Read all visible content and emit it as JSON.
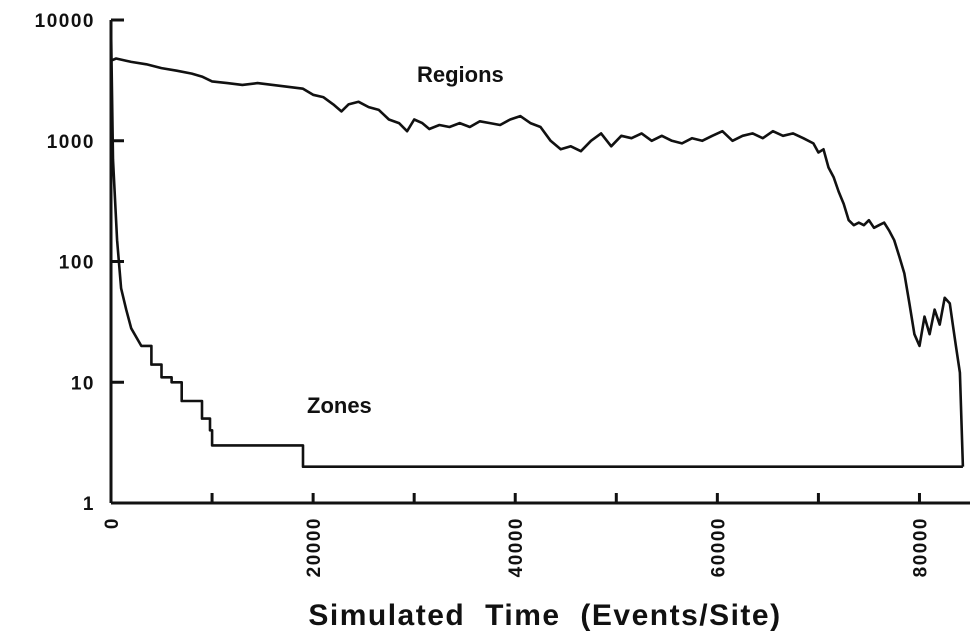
{
  "chart_data": {
    "type": "line",
    "title": "",
    "xlabel": "Simulated  Time  (Events/Site)",
    "ylabel": "",
    "yscale": "log",
    "ylim": [
      1,
      10000
    ],
    "xlim": [
      0,
      85000
    ],
    "yticks": [
      1,
      10,
      100,
      1000,
      10000
    ],
    "ytick_labels": [
      "1",
      "10",
      "100",
      "1000",
      "10000"
    ],
    "xticks": [
      0,
      20000,
      40000,
      60000,
      80000
    ],
    "xtick_labels": [
      "0",
      "20000",
      "40000",
      "60000",
      "80000"
    ],
    "grid": false,
    "legend": "none",
    "series": [
      {
        "name": "Regions",
        "x": [
          0,
          500,
          1000,
          2000,
          3500,
          5000,
          6500,
          8000,
          9000,
          10000,
          11500,
          13000,
          14500,
          16000,
          17500,
          19000,
          20000,
          21000,
          22000,
          22800,
          23500,
          24500,
          25500,
          26500,
          27500,
          28500,
          29300,
          30000,
          30800,
          31500,
          32500,
          33500,
          34500,
          35500,
          36500,
          37500,
          38500,
          39500,
          40500,
          41500,
          42500,
          43500,
          44500,
          45500,
          46500,
          47500,
          48500,
          49500,
          50500,
          51500,
          52500,
          53500,
          54500,
          55500,
          56500,
          57500,
          58500,
          59500,
          60500,
          61500,
          62500,
          63500,
          64500,
          65500,
          66500,
          67500,
          68500,
          69500,
          70000,
          70500,
          71000,
          71500,
          72000,
          72500,
          73000,
          73500,
          74000,
          74500,
          75000,
          75500,
          76000,
          76500,
          77000,
          77500,
          78000,
          78500,
          79000,
          79500,
          80000,
          80500,
          81000,
          81500,
          82000,
          82500,
          83000,
          83300,
          83600,
          84000,
          84300
        ],
        "values": [
          4600,
          4800,
          4700,
          4500,
          4300,
          4000,
          3800,
          3600,
          3400,
          3100,
          3000,
          2900,
          3000,
          2900,
          2800,
          2700,
          2400,
          2300,
          2000,
          1750,
          2000,
          2100,
          1900,
          1800,
          1500,
          1400,
          1200,
          1500,
          1400,
          1250,
          1350,
          1300,
          1400,
          1300,
          1450,
          1400,
          1350,
          1500,
          1600,
          1400,
          1300,
          1000,
          850,
          900,
          820,
          1000,
          1150,
          900,
          1100,
          1050,
          1150,
          1000,
          1100,
          1000,
          950,
          1050,
          1000,
          1100,
          1200,
          1000,
          1100,
          1150,
          1050,
          1200,
          1100,
          1150,
          1050,
          950,
          800,
          850,
          600,
          500,
          380,
          300,
          220,
          200,
          210,
          200,
          220,
          190,
          200,
          210,
          180,
          150,
          110,
          80,
          45,
          25,
          20,
          35,
          25,
          40,
          30,
          50,
          45,
          30,
          20,
          12,
          2
        ]
      },
      {
        "name": "Zones",
        "x": [
          0,
          200,
          600,
          1000,
          1500,
          2000,
          3000,
          4000,
          5000,
          6000,
          7000,
          8000,
          9000,
          9800,
          10000,
          12000,
          15000,
          18900,
          19000,
          25000,
          40000,
          60000,
          80000,
          84000
        ],
        "values": [
          9000,
          700,
          150,
          60,
          40,
          28,
          20,
          14,
          11,
          10,
          7,
          7,
          5,
          4,
          3,
          3,
          3,
          3,
          2,
          2,
          2,
          2,
          2,
          2
        ]
      }
    ]
  }
}
